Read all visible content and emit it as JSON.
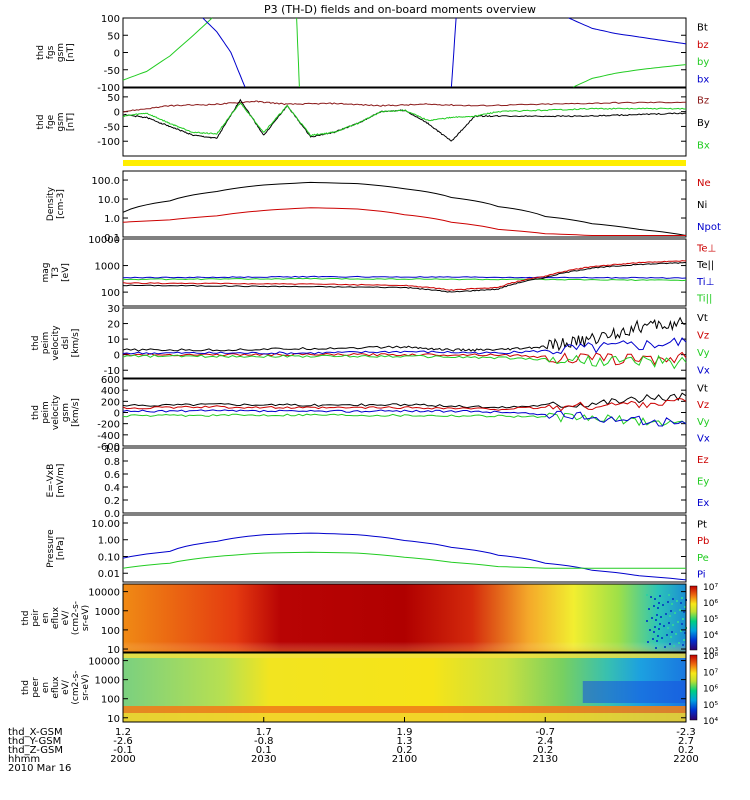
{
  "title": "P3 (TH-D) fields and on-board moments overview",
  "date_label": "2010 Mar 16",
  "colors": {
    "black": "#000000",
    "red": "#cc0000",
    "green": "#22cc22",
    "blue": "#0000cc",
    "brown": "#8b1a1a",
    "yellow": "#ffee00"
  },
  "panels": [
    {
      "id": "fgs",
      "ylabel": [
        "thd",
        "fgs",
        "gsm",
        "[nT]"
      ],
      "ticks": [
        {
          "v": 100,
          "l": "100"
        },
        {
          "v": 50,
          "l": "50"
        },
        {
          "v": 0,
          "l": "0"
        },
        {
          "v": -50,
          "l": "-50"
        },
        {
          "v": -100,
          "l": "-100"
        }
      ],
      "ylim": [
        -100,
        100
      ],
      "scale": "linear",
      "legend": [
        {
          "t": "Bt",
          "c": "black"
        },
        {
          "t": "bz",
          "c": "red"
        },
        {
          "t": "by",
          "c": "green"
        },
        {
          "t": "bx",
          "c": "blue"
        }
      ]
    },
    {
      "id": "fge",
      "ylabel": [
        "thd",
        "fge",
        "gsm",
        "[nT]"
      ],
      "ticks": [
        {
          "v": 50,
          "l": "50"
        },
        {
          "v": 0,
          "l": "0"
        },
        {
          "v": -50,
          "l": "-50"
        },
        {
          "v": -100,
          "l": "-100"
        }
      ],
      "ylim": [
        -150,
        80
      ],
      "scale": "linear",
      "legend": [
        {
          "t": "Bz",
          "c": "brown"
        },
        {
          "t": "By",
          "c": "black"
        },
        {
          "t": "Bx",
          "c": "green"
        }
      ]
    },
    {
      "id": "density",
      "ylabel": [
        "Density",
        "[cm-3]"
      ],
      "ticks": [
        {
          "v": 100,
          "l": "100.0"
        },
        {
          "v": 10,
          "l": "10.0"
        },
        {
          "v": 1,
          "l": "1.0"
        },
        {
          "v": 0.1,
          "l": "0.1"
        }
      ],
      "ylim": [
        0.1,
        300
      ],
      "scale": "log",
      "legend": [
        {
          "t": "Ne",
          "c": "red"
        },
        {
          "t": "Ni",
          "c": "black"
        },
        {
          "t": "Npot",
          "c": "blue"
        }
      ]
    },
    {
      "id": "temp",
      "ylabel": [
        "mag",
        "T3",
        "[eV]"
      ],
      "ticks": [
        {
          "v": 10000,
          "l": "10000"
        },
        {
          "v": 1000,
          "l": "1000"
        },
        {
          "v": 100,
          "l": "100"
        }
      ],
      "ylim": [
        30,
        10000
      ],
      "scale": "log",
      "legend": [
        {
          "t": "Te⊥",
          "c": "red"
        },
        {
          "t": "Te||",
          "c": "black"
        },
        {
          "t": "Ti⊥",
          "c": "blue"
        },
        {
          "t": "Ti||",
          "c": "green"
        }
      ]
    },
    {
      "id": "vel_dsl",
      "ylabel": [
        "thd",
        "peim",
        "velocity",
        "dsl",
        "[km/s]"
      ],
      "ticks": [
        {
          "v": 30,
          "l": "30"
        },
        {
          "v": 20,
          "l": "20"
        },
        {
          "v": 10,
          "l": "10"
        },
        {
          "v": 0,
          "l": "0"
        },
        {
          "v": -10,
          "l": "-10"
        }
      ],
      "ylim": [
        -15,
        30
      ],
      "scale": "linear",
      "legend": [
        {
          "t": "Vt",
          "c": "black"
        },
        {
          "t": "Vz",
          "c": "red"
        },
        {
          "t": "Vy",
          "c": "green"
        },
        {
          "t": "Vx",
          "c": "blue"
        }
      ]
    },
    {
      "id": "vel_gsm",
      "ylabel": [
        "thd",
        "peim",
        "velocity",
        "gsm",
        "[km/s]"
      ],
      "ticks": [
        {
          "v": 600,
          "l": "600"
        },
        {
          "v": 400,
          "l": "400"
        },
        {
          "v": 200,
          "l": "200"
        },
        {
          "v": 0,
          "l": "0"
        },
        {
          "v": -200,
          "l": "-200"
        },
        {
          "v": -400,
          "l": "-400"
        },
        {
          "v": -600,
          "l": "-600"
        }
      ],
      "ylim": [
        -600,
        600
      ],
      "scale": "linear",
      "legend": [
        {
          "t": "Vt",
          "c": "black"
        },
        {
          "t": "Vz",
          "c": "red"
        },
        {
          "t": "Vy",
          "c": "green"
        },
        {
          "t": "Vx",
          "c": "blue"
        }
      ]
    },
    {
      "id": "efield",
      "ylabel": [
        "E=-VxB",
        "[mV/m]"
      ],
      "ticks": [
        {
          "v": 1.0,
          "l": "1.0"
        },
        {
          "v": 0.8,
          "l": "0.8"
        },
        {
          "v": 0.6,
          "l": "0.6"
        },
        {
          "v": 0.4,
          "l": "0.4"
        },
        {
          "v": 0.2,
          "l": "0.2"
        },
        {
          "v": 0.0,
          "l": "0.0"
        }
      ],
      "ylim": [
        0,
        1
      ],
      "scale": "linear",
      "legend": [
        {
          "t": "Ez",
          "c": "red"
        },
        {
          "t": "Ey",
          "c": "green"
        },
        {
          "t": "Ex",
          "c": "blue"
        }
      ]
    },
    {
      "id": "pressure",
      "ylabel": [
        "Pressure",
        "[nPa]"
      ],
      "ticks": [
        {
          "v": 10,
          "l": "10.00"
        },
        {
          "v": 1,
          "l": "1.00"
        },
        {
          "v": 0.1,
          "l": "0.10"
        },
        {
          "v": 0.01,
          "l": "0.01"
        }
      ],
      "ylim": [
        0.003,
        30
      ],
      "scale": "log",
      "legend": [
        {
          "t": "Pt",
          "c": "black"
        },
        {
          "t": "Pb",
          "c": "red"
        },
        {
          "t": "Pe",
          "c": "green"
        },
        {
          "t": "Pi",
          "c": "blue"
        }
      ]
    },
    {
      "id": "ion_spec",
      "ylabel": [
        "thd",
        "peir",
        "en",
        "eflux",
        "eV/",
        "(cm2-s-",
        "sr-eV)"
      ],
      "ticks": [
        {
          "v": 10000,
          "l": "10000"
        },
        {
          "v": 1000,
          "l": "1000"
        },
        {
          "v": 100,
          "l": "100"
        },
        {
          "v": 10,
          "l": "10"
        }
      ],
      "ylim": [
        7,
        25000
      ],
      "scale": "log",
      "colorbar": [
        "10⁷",
        "10⁶",
        "10⁵",
        "10⁴",
        "10³"
      ],
      "legend": []
    },
    {
      "id": "elec_spec",
      "ylabel": [
        "thd",
        "peer",
        "en",
        "eflux",
        "eV/",
        "(cm2-s-",
        "sr-eV)"
      ],
      "ticks": [
        {
          "v": 10000,
          "l": "10000"
        },
        {
          "v": 1000,
          "l": "1000"
        },
        {
          "v": 100,
          "l": "100"
        },
        {
          "v": 10,
          "l": "10"
        }
      ],
      "ylim": [
        6,
        25000
      ],
      "scale": "log",
      "colorbar": [
        "10⁸",
        "10⁷",
        "10⁶",
        "10⁵",
        "10⁴"
      ],
      "legend": []
    }
  ],
  "xaxis": {
    "rows": [
      {
        "label": "thd_X-GSM",
        "values": [
          "1.2",
          "1.7",
          "1.9",
          "-0.7",
          "-2.3"
        ]
      },
      {
        "label": "thd_Y-GSM",
        "values": [
          "-2.6",
          "-0.8",
          "1.3",
          "2.4",
          "2.7"
        ]
      },
      {
        "label": "thd_Z-GSM",
        "values": [
          "-0.1",
          "0.1",
          "0.2",
          "0.2",
          "0.2"
        ]
      },
      {
        "label": "hhmm",
        "values": [
          "2000",
          "2030",
          "2100",
          "2130",
          "2200"
        ]
      }
    ]
  },
  "chart_data": {
    "type": "line",
    "title": "P3 (TH-D) fields and on-board moments overview",
    "x_unit": "minutes after 2000 UT",
    "x": [
      0,
      20,
      40,
      60,
      80,
      100,
      120
    ],
    "xlim": [
      0,
      120
    ],
    "xticks": [
      0,
      30,
      60,
      90,
      120
    ],
    "series": [
      {
        "panel": "fgs",
        "name": "by",
        "color": "green",
        "x": [
          0,
          5,
          10,
          15,
          19
        ],
        "values": [
          -80,
          -55,
          -10,
          50,
          100
        ]
      },
      {
        "panel": "fgs",
        "name": "by",
        "color": "green",
        "x": [
          37,
          37.6
        ],
        "values": [
          100,
          -100
        ]
      },
      {
        "panel": "fgs",
        "name": "bx",
        "color": "blue",
        "x": [
          17,
          20,
          23,
          26
        ],
        "values": [
          100,
          60,
          0,
          -100
        ]
      },
      {
        "panel": "fgs",
        "name": "bx",
        "color": "blue",
        "x": [
          70,
          71
        ],
        "values": [
          -100,
          100
        ]
      },
      {
        "panel": "fgs",
        "name": "bx",
        "color": "blue",
        "x": [
          95,
          100,
          105,
          110,
          115,
          120
        ],
        "values": [
          100,
          70,
          55,
          45,
          35,
          25
        ]
      },
      {
        "panel": "fgs",
        "name": "by",
        "color": "green",
        "x": [
          96,
          100,
          105,
          110,
          115,
          120
        ],
        "values": [
          -100,
          -75,
          -60,
          -50,
          -42,
          -35
        ]
      },
      {
        "panel": "fge",
        "name": "Bz",
        "color": "brown",
        "x": [
          0,
          10,
          20,
          28,
          35,
          45,
          55,
          65,
          75,
          90,
          105,
          120
        ],
        "values": [
          0,
          20,
          25,
          35,
          25,
          28,
          20,
          25,
          20,
          25,
          30,
          32
        ]
      },
      {
        "panel": "fge",
        "name": "By",
        "color": "black",
        "x": [
          0,
          5,
          10,
          15,
          20,
          25,
          30,
          35,
          40,
          45,
          50,
          55,
          60,
          65,
          70,
          75,
          80,
          90,
          100,
          110,
          120
        ],
        "values": [
          -10,
          -20,
          -50,
          -80,
          -90,
          40,
          -80,
          20,
          -85,
          -70,
          -40,
          0,
          5,
          -40,
          -100,
          -15,
          -15,
          -15,
          -15,
          -10,
          -5
        ]
      },
      {
        "panel": "fge",
        "name": "Bx",
        "color": "green",
        "x": [
          0,
          5,
          10,
          15,
          20,
          25,
          30,
          35,
          40,
          45,
          50,
          55,
          60,
          65,
          70,
          75,
          80,
          90,
          100,
          110,
          120
        ],
        "values": [
          -15,
          -5,
          -40,
          -70,
          -75,
          30,
          -70,
          20,
          -80,
          -70,
          -40,
          0,
          5,
          -30,
          -20,
          -15,
          0,
          5,
          10,
          10,
          10
        ]
      },
      {
        "panel": "density",
        "name": "Ni",
        "color": "black",
        "x": [
          0,
          10,
          20,
          30,
          40,
          50,
          60,
          70,
          80,
          90,
          100,
          110,
          120
        ],
        "values": [
          2,
          8,
          25,
          55,
          75,
          65,
          35,
          12,
          4,
          1.2,
          0.5,
          0.25,
          0.12
        ]
      },
      {
        "panel": "density",
        "name": "Ne",
        "color": "red",
        "x": [
          0,
          10,
          20,
          30,
          40,
          50,
          60,
          70,
          80,
          90,
          100,
          110,
          120
        ],
        "values": [
          0.6,
          0.8,
          1.3,
          2.5,
          3.5,
          3.0,
          1.5,
          0.6,
          0.25,
          0.15,
          0.12,
          0.12,
          0.12
        ]
      },
      {
        "panel": "temp",
        "name": "Ti⊥",
        "color": "blue",
        "x": [
          0,
          20,
          40,
          60,
          80,
          100,
          120
        ],
        "values": [
          350,
          360,
          380,
          370,
          360,
          350,
          340
        ]
      },
      {
        "panel": "temp",
        "name": "Ti||",
        "color": "green",
        "x": [
          0,
          20,
          40,
          60,
          80,
          100,
          120
        ],
        "values": [
          300,
          310,
          320,
          310,
          300,
          290,
          280
        ]
      },
      {
        "panel": "temp",
        "name": "Te⊥",
        "color": "red",
        "x": [
          0,
          20,
          40,
          60,
          70,
          80,
          90,
          100,
          110,
          120
        ],
        "values": [
          220,
          210,
          200,
          180,
          120,
          150,
          400,
          900,
          1300,
          1500
        ]
      },
      {
        "panel": "temp",
        "name": "Te||",
        "color": "black",
        "x": [
          0,
          20,
          40,
          60,
          70,
          80,
          90,
          100,
          110,
          120
        ],
        "values": [
          180,
          170,
          160,
          150,
          100,
          130,
          350,
          800,
          1100,
          1300
        ]
      },
      {
        "panel": "vel_dsl",
        "name": "Vt",
        "color": "black",
        "x": [
          0,
          20,
          40,
          60,
          70,
          80,
          90,
          100,
          110,
          120
        ],
        "values": [
          3,
          3,
          4,
          5,
          3,
          3,
          5,
          10,
          18,
          20
        ]
      },
      {
        "panel": "vel_dsl",
        "name": "Vz",
        "color": "red",
        "x": [
          0,
          20,
          40,
          60,
          80,
          100,
          120
        ],
        "values": [
          0,
          0,
          0,
          0,
          0,
          -3,
          -2
        ]
      },
      {
        "panel": "vel_dsl",
        "name": "Vy",
        "color": "green",
        "x": [
          0,
          20,
          40,
          60,
          80,
          100,
          120
        ],
        "values": [
          -1,
          -1,
          -1,
          -1,
          -2,
          -4,
          -5
        ]
      },
      {
        "panel": "vel_dsl",
        "name": "Vx",
        "color": "blue",
        "x": [
          0,
          20,
          40,
          60,
          80,
          100,
          120
        ],
        "values": [
          1,
          1,
          1,
          2,
          1,
          4,
          8
        ]
      },
      {
        "panel": "vel_gsm",
        "name": "Vt",
        "color": "black",
        "x": [
          0,
          20,
          40,
          60,
          80,
          100,
          120
        ],
        "values": [
          120,
          150,
          130,
          140,
          90,
          180,
          300
        ]
      },
      {
        "panel": "vel_gsm",
        "name": "Vz",
        "color": "red",
        "x": [
          0,
          20,
          40,
          60,
          80,
          100,
          120
        ],
        "values": [
          80,
          100,
          80,
          90,
          60,
          120,
          200
        ]
      },
      {
        "panel": "vel_gsm",
        "name": "Vy",
        "color": "green",
        "x": [
          0,
          20,
          40,
          60,
          80,
          100,
          120
        ],
        "values": [
          -60,
          -50,
          -40,
          -50,
          -60,
          -100,
          -200
        ]
      },
      {
        "panel": "vel_gsm",
        "name": "Vx",
        "color": "blue",
        "x": [
          0,
          20,
          40,
          60,
          80,
          100,
          120
        ],
        "values": [
          20,
          30,
          20,
          30,
          10,
          -80,
          -200
        ]
      },
      {
        "panel": "pressure",
        "name": "Pi",
        "color": "blue",
        "x": [
          0,
          10,
          20,
          30,
          40,
          50,
          60,
          70,
          80,
          90,
          100,
          110,
          120
        ],
        "values": [
          0.08,
          0.2,
          0.8,
          2.0,
          2.5,
          2.0,
          0.9,
          0.35,
          0.12,
          0.04,
          0.015,
          0.007,
          0.004
        ]
      },
      {
        "panel": "pressure",
        "name": "Pe",
        "color": "green",
        "x": [
          0,
          10,
          20,
          30,
          40,
          50,
          60,
          70,
          80,
          90,
          100,
          110,
          120
        ],
        "values": [
          0.02,
          0.04,
          0.1,
          0.16,
          0.18,
          0.16,
          0.09,
          0.045,
          0.025,
          0.02,
          0.02,
          0.02,
          0.02
        ]
      }
    ]
  }
}
